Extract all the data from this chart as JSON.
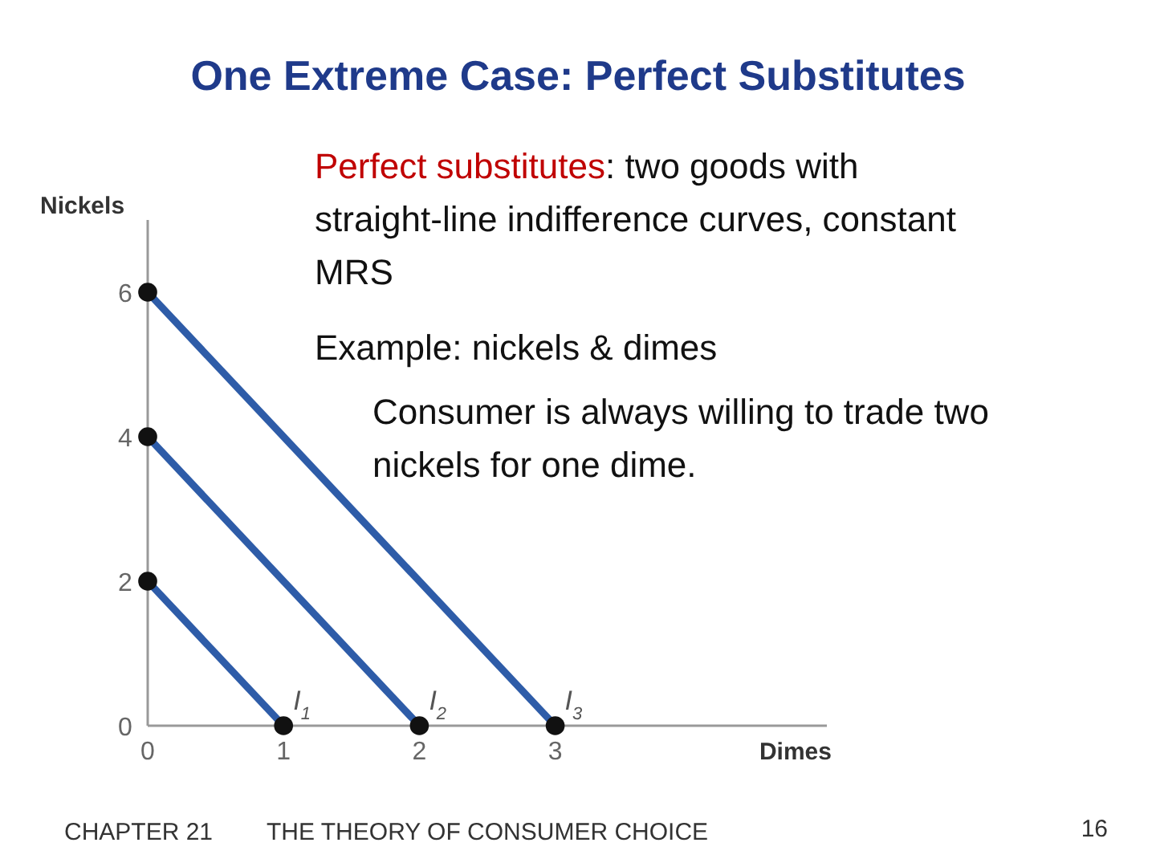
{
  "chart_data": {
    "type": "line",
    "title": "One Extreme Case:  Perfect Substitutes",
    "xlabel": "Dimes",
    "ylabel": "Nickels",
    "series": [
      {
        "name": "I$_{1}$",
        "color": "#2e5ca8",
        "x": [
          0,
          1
        ],
        "values": [
          2,
          0
        ]
      },
      {
        "name": "I$_{2}$",
        "color": "#2e5ca8",
        "x": [
          0,
          2
        ],
        "values": [
          4,
          0
        ]
      },
      {
        "name": "I$_{3}$",
        "color": "#2e5ca8",
        "x": [
          0,
          3
        ],
        "values": [
          6,
          0
        ]
      }
    ],
    "xlim": [
      0,
      5
    ],
    "ylim": [
      0,
      7
    ],
    "xticks": [
      0,
      1,
      2,
      3
    ],
    "yticks": [
      0,
      2,
      4,
      6
    ],
    "grid": false,
    "legend": false,
    "marker": "circle",
    "line_style": "solid",
    "annotations": [
      "Perfect substitutes:  two goods with straight-line indifference curves, constant MRS",
      "Example:  nickels & dimes",
      "Consumer is always willing to trade two nickels for one dime.",
      "CHAPTER 21",
      "THE THEORY OF CONSUMER CHOICE",
      "16"
    ]
  }
}
